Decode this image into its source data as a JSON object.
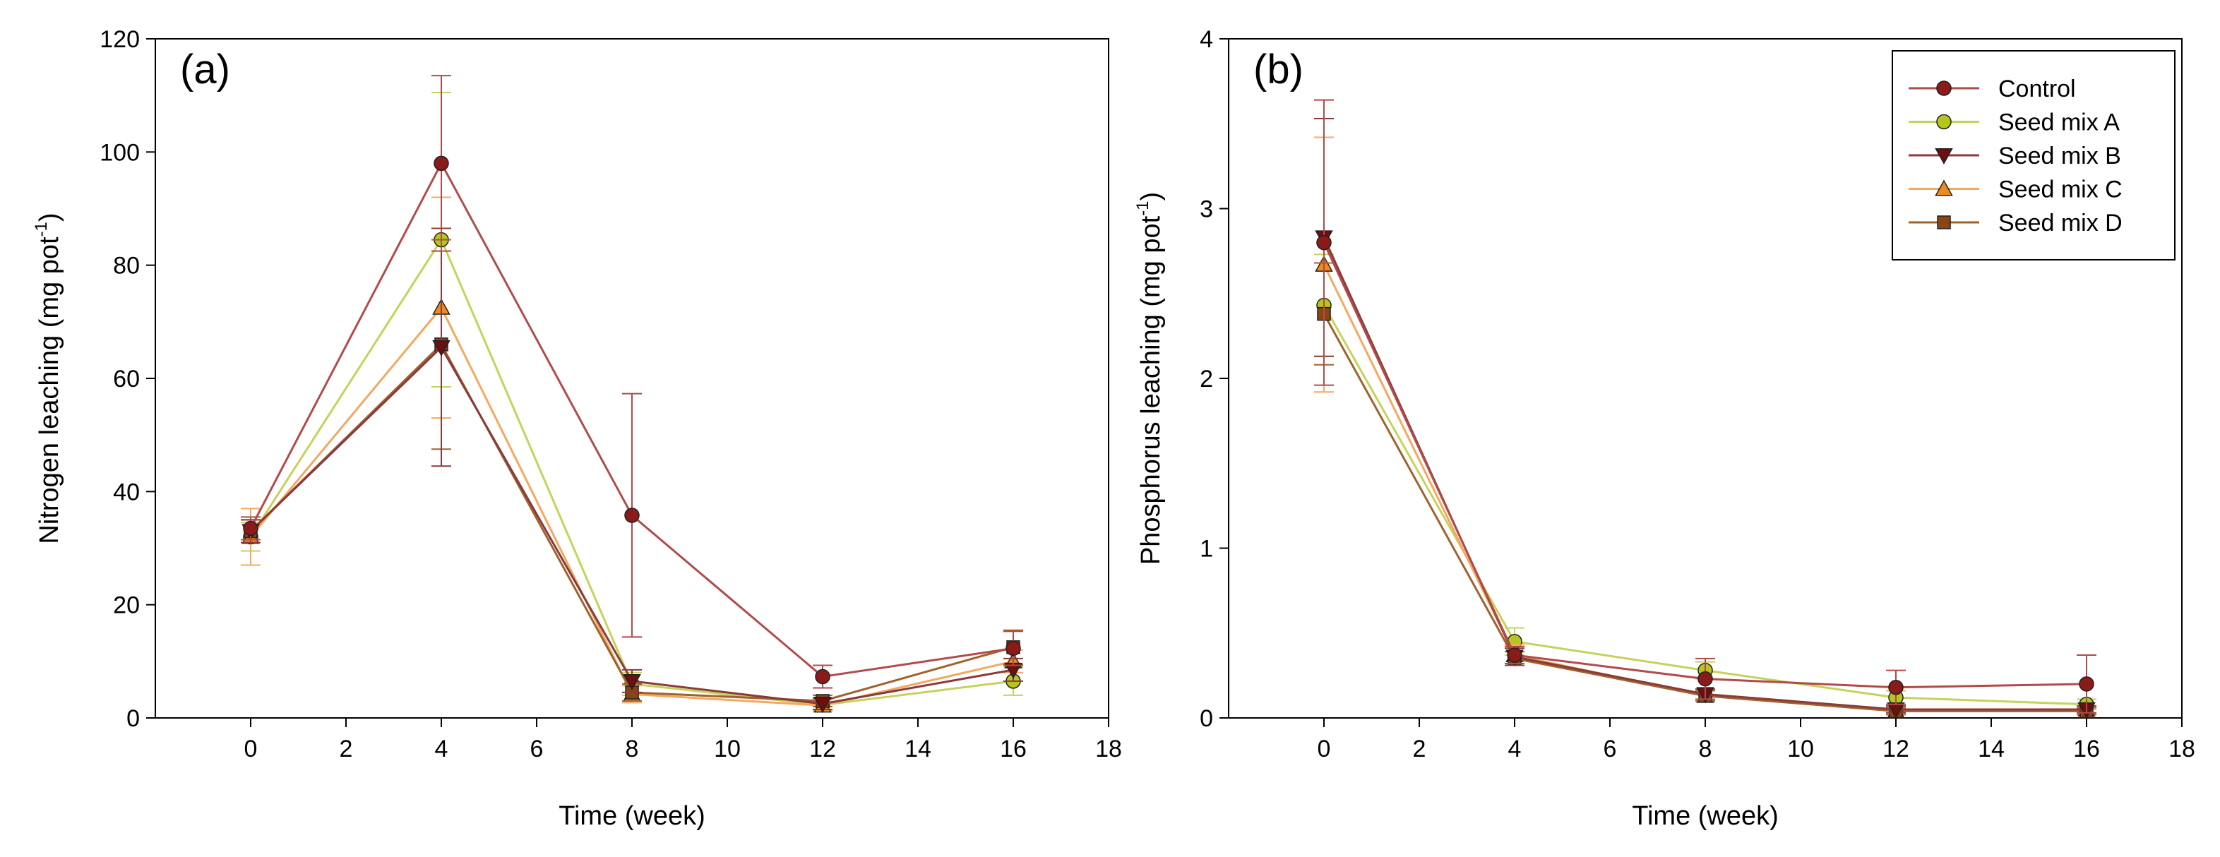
{
  "chart_data": [
    {
      "type": "line",
      "panel_label": "(a)",
      "xlabel": "Time (week)",
      "ylabel_main": "Nitrogen leaching (mg pot",
      "ylabel_sup": "-1",
      "ylabel_end": ")",
      "xlim": [
        -2,
        18
      ],
      "ylim": [
        0,
        120
      ],
      "x_ticks": [
        0,
        2,
        4,
        6,
        8,
        10,
        12,
        14,
        16,
        18
      ],
      "y_ticks": [
        0,
        20,
        40,
        60,
        80,
        100,
        120
      ],
      "x": [
        0,
        4,
        8,
        12,
        16
      ],
      "series": [
        {
          "name": "Control",
          "values": [
            33.5,
            98.0,
            35.8,
            7.3,
            12.3
          ],
          "errors": [
            2.0,
            15.5,
            21.5,
            2.0,
            3.0
          ]
        },
        {
          "name": "Seed mix A",
          "values": [
            32.0,
            84.5,
            6.0,
            2.3,
            6.5
          ],
          "errors": [
            2.5,
            26.0,
            2.0,
            1.0,
            2.5
          ]
        },
        {
          "name": "Seed mix B",
          "values": [
            33.0,
            65.5,
            6.5,
            2.5,
            8.5
          ],
          "errors": [
            2.0,
            21.0,
            2.0,
            1.0,
            2.0
          ]
        },
        {
          "name": "Seed mix C",
          "values": [
            32.0,
            72.5,
            4.2,
            2.2,
            10.0
          ],
          "errors": [
            5.0,
            19.5,
            1.5,
            1.0,
            2.0
          ]
        },
        {
          "name": "Seed mix D",
          "values": [
            33.0,
            66.0,
            4.5,
            3.0,
            12.5
          ],
          "errors": [
            2.0,
            18.5,
            1.5,
            1.0,
            3.0
          ]
        }
      ]
    },
    {
      "type": "line",
      "panel_label": "(b)",
      "xlabel": "Time (week)",
      "ylabel_main": "Phosphorus leaching (mg pot",
      "ylabel_sup": "-1",
      "ylabel_end": ")",
      "xlim": [
        -2,
        18
      ],
      "ylim": [
        0,
        4
      ],
      "x_ticks": [
        0,
        2,
        4,
        6,
        8,
        10,
        12,
        14,
        16,
        18
      ],
      "y_ticks": [
        0,
        1,
        2,
        3,
        4
      ],
      "legend_position": "top-right",
      "x": [
        0,
        4,
        8,
        12,
        16
      ],
      "series": [
        {
          "name": "Control",
          "values": [
            2.8,
            0.37,
            0.23,
            0.18,
            0.2
          ],
          "errors": [
            0.84,
            0.05,
            0.12,
            0.1,
            0.17
          ]
        },
        {
          "name": "Seed mix A",
          "values": [
            2.43,
            0.45,
            0.28,
            0.12,
            0.08
          ],
          "errors": [
            0.3,
            0.08,
            0.05,
            0.04,
            0.03
          ]
        },
        {
          "name": "Seed mix B",
          "values": [
            2.83,
            0.36,
            0.14,
            0.05,
            0.05
          ],
          "errors": [
            0.7,
            0.05,
            0.03,
            0.02,
            0.02
          ]
        },
        {
          "name": "Seed mix C",
          "values": [
            2.67,
            0.37,
            0.13,
            0.04,
            0.05
          ],
          "errors": [
            0.75,
            0.06,
            0.03,
            0.02,
            0.02
          ]
        },
        {
          "name": "Seed mix D",
          "values": [
            2.38,
            0.35,
            0.13,
            0.04,
            0.04
          ],
          "errors": [
            0.3,
            0.04,
            0.03,
            0.02,
            0.02
          ]
        }
      ]
    }
  ],
  "legend": {
    "entries": [
      {
        "name": "Control",
        "color": "#8B1A1A",
        "line_color": "#B24A4A",
        "marker": "circle"
      },
      {
        "name": "Seed mix A",
        "color": "#B5C61E",
        "line_color": "#C6D25A",
        "marker": "circle"
      },
      {
        "name": "Seed mix B",
        "color": "#6B0F0F",
        "line_color": "#8A3A3A",
        "marker": "triangle-down"
      },
      {
        "name": "Seed mix C",
        "color": "#F08A1C",
        "line_color": "#F4A860",
        "marker": "triangle-up"
      },
      {
        "name": "Seed mix D",
        "color": "#8B4513",
        "line_color": "#A0622D",
        "marker": "square"
      }
    ]
  }
}
